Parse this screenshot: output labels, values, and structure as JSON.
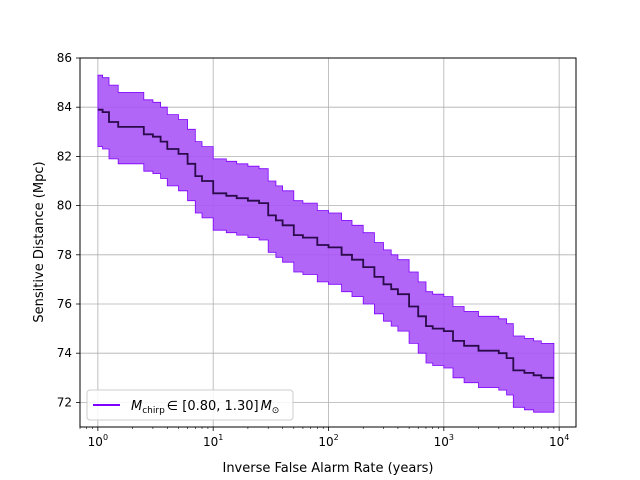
{
  "chart_data": {
    "type": "line",
    "xlabel": "Inverse False Alarm Rate (years)",
    "ylabel": "Sensitive Distance (Mpc)",
    "xscale": "log",
    "xlim": [
      0.7,
      14000
    ],
    "ylim": [
      71,
      86
    ],
    "grid": true,
    "legend_position": "lower-left",
    "x_ticks": [
      {
        "value": 1,
        "mantissa": "10",
        "exp": "0"
      },
      {
        "value": 10,
        "mantissa": "10",
        "exp": "1"
      },
      {
        "value": 100,
        "mantissa": "10",
        "exp": "2"
      },
      {
        "value": 1000,
        "mantissa": "10",
        "exp": "3"
      },
      {
        "value": 10000,
        "mantissa": "10",
        "exp": "4"
      }
    ],
    "y_ticks": [
      72,
      74,
      76,
      78,
      80,
      82,
      84,
      86
    ],
    "series": [
      {
        "name": "M_chirp ∈ [0.80, 1.30] M_⊙",
        "color": "#7f00ff",
        "band_color": "#a855f7",
        "line_color": "#2a0a4a",
        "x": [
          1.0,
          1.1,
          1.25,
          1.5,
          2.0,
          2.5,
          3.0,
          3.5,
          4.0,
          5.0,
          6.0,
          7.0,
          8.0,
          10.0,
          13.0,
          16.0,
          20.0,
          25.0,
          30.0,
          35.0,
          40.0,
          50.0,
          60.0,
          70.0,
          80.0,
          100.0,
          130.0,
          160.0,
          200.0,
          250.0,
          300.0,
          350.0,
          400.0,
          500.0,
          600.0,
          700.0,
          800.0,
          1000.0,
          1200.0,
          1500.0,
          2000.0,
          2500.0,
          3000.0,
          3500.0,
          4000.0,
          5000.0,
          6000.0,
          7000.0,
          8000.0,
          9000.0
        ],
        "y": [
          83.9,
          83.8,
          83.4,
          83.2,
          83.2,
          82.9,
          82.8,
          82.6,
          82.3,
          82.1,
          81.7,
          81.2,
          81.0,
          80.5,
          80.4,
          80.3,
          80.2,
          80.1,
          79.6,
          79.4,
          79.2,
          78.8,
          78.7,
          78.7,
          78.4,
          78.3,
          78.0,
          77.8,
          77.5,
          77.1,
          76.8,
          76.6,
          76.4,
          75.9,
          75.5,
          75.1,
          75.0,
          74.9,
          74.5,
          74.3,
          74.1,
          74.1,
          74.0,
          73.8,
          73.3,
          73.2,
          73.1,
          73.0,
          73.0,
          73.0
        ],
        "lower": [
          82.4,
          82.3,
          81.9,
          81.7,
          81.7,
          81.4,
          81.3,
          81.1,
          80.8,
          80.6,
          80.2,
          79.7,
          79.5,
          79.0,
          78.9,
          78.8,
          78.7,
          78.6,
          78.1,
          77.9,
          77.7,
          77.3,
          77.2,
          77.2,
          76.9,
          76.8,
          76.5,
          76.3,
          76.0,
          75.6,
          75.3,
          75.1,
          74.9,
          74.4,
          74.0,
          73.6,
          73.5,
          73.4,
          73.0,
          72.8,
          72.6,
          72.6,
          72.5,
          72.3,
          71.8,
          71.7,
          71.6,
          71.6,
          71.6,
          71.6
        ],
        "upper": [
          85.3,
          85.2,
          84.9,
          84.6,
          84.6,
          84.3,
          84.2,
          84.0,
          83.7,
          83.5,
          83.1,
          82.6,
          82.4,
          81.9,
          81.8,
          81.7,
          81.6,
          81.5,
          81.0,
          80.8,
          80.6,
          80.2,
          80.1,
          80.1,
          79.8,
          79.7,
          79.4,
          79.2,
          78.9,
          78.5,
          78.2,
          78.0,
          77.8,
          77.3,
          76.9,
          76.5,
          76.4,
          76.3,
          75.9,
          75.7,
          75.5,
          75.5,
          75.4,
          75.2,
          74.7,
          74.6,
          74.5,
          74.4,
          74.4,
          74.4
        ]
      }
    ],
    "legend": {
      "symbol": "M",
      "subscript": "chirp",
      "range_text": "∈ [0.80, 1.30]",
      "unit_symbol": "M",
      "unit_subscript": "⊙"
    }
  }
}
